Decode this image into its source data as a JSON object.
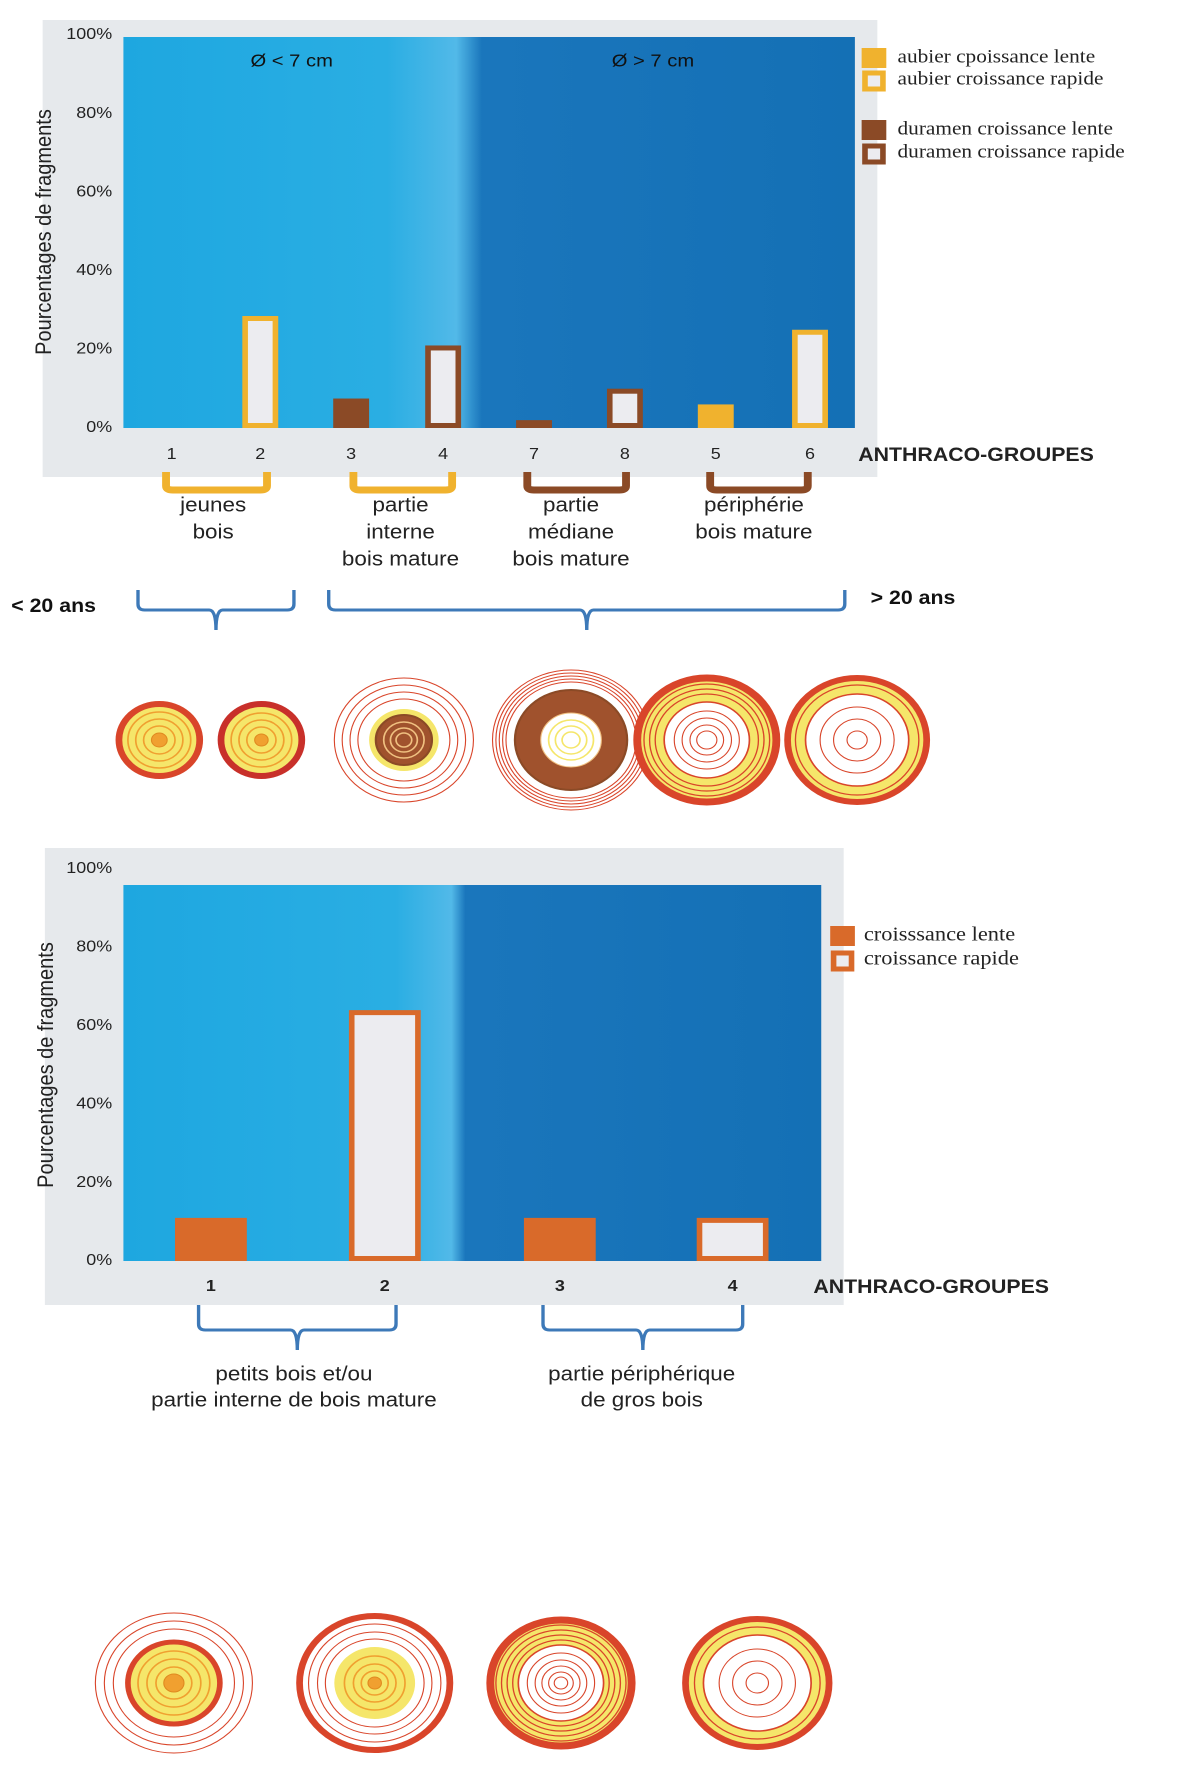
{
  "chart_data": [
    {
      "type": "bar",
      "ylabel": "Pourcentages de fragments",
      "xlabel": "ANTHRACO-GROUPES",
      "categories": [
        "1",
        "2",
        "3",
        "4",
        "7",
        "8",
        "5",
        "6"
      ],
      "series": [
        {
          "name": "aubier cpoissance lente",
          "color": "#f0b22e",
          "outline": false,
          "values": [
            0,
            null,
            null,
            null,
            null,
            null,
            6,
            null
          ]
        },
        {
          "name": "aubier croissance rapide",
          "color": "#f0b22e",
          "outline": true,
          "values": [
            null,
            28.5,
            null,
            null,
            null,
            null,
            null,
            25
          ]
        },
        {
          "name": "duramen croissance lente",
          "color": "#8b4a26",
          "outline": false,
          "values": [
            null,
            null,
            7.5,
            null,
            2,
            null,
            null,
            null
          ]
        },
        {
          "name": "duramen croissance rapide",
          "color": "#8b4a26",
          "outline": true,
          "values": [
            null,
            null,
            null,
            21,
            null,
            10,
            null,
            null
          ]
        }
      ],
      "ylim": [
        0,
        100
      ],
      "yticks": [
        {
          "value": 0,
          "label": "0%"
        },
        {
          "value": 20,
          "label": "20%"
        },
        {
          "value": 40,
          "label": "40%"
        },
        {
          "value": 60,
          "label": "60%"
        },
        {
          "value": 80,
          "label": "80%"
        },
        {
          "value": 100,
          "label": "100%"
        }
      ],
      "annotations": [
        "Ø < 7 cm",
        "Ø  > 7 cm"
      ],
      "group_labels": [
        [
          "jeunes",
          "bois"
        ],
        [
          "partie",
          "interne",
          "bois mature"
        ],
        [
          "partie",
          "médiane",
          "bois mature"
        ],
        [
          "périphérie",
          "bois mature"
        ]
      ],
      "age_labels": [
        "< 20 ans",
        "> 20 ans"
      ]
    },
    {
      "type": "bar",
      "ylabel": "Pourcentages de fragments",
      "xlabel": "ANTHRACO-GROUPES",
      "categories": [
        "1",
        "2",
        "3",
        "4"
      ],
      "series": [
        {
          "name": "croisssance lente",
          "color": "#d96a2a",
          "outline": false,
          "values": [
            11,
            null,
            11,
            null
          ]
        },
        {
          "name": "croissance rapide",
          "color": "#d96a2a",
          "outline": true,
          "values": [
            null,
            64,
            null,
            11
          ]
        }
      ],
      "ylim": [
        0,
        100
      ],
      "yticks": [
        {
          "value": 0,
          "label": "0%"
        },
        {
          "value": 20,
          "label": "20%"
        },
        {
          "value": 40,
          "label": "40%"
        },
        {
          "value": 60,
          "label": "60%"
        },
        {
          "value": 80,
          "label": "80%"
        },
        {
          "value": 100,
          "label": "100%"
        }
      ],
      "group_labels": [
        [
          "petits bois et/ou",
          "partie interne de bois mature"
        ],
        [
          "partie périphérique",
          "de gros bois"
        ]
      ]
    }
  ]
}
